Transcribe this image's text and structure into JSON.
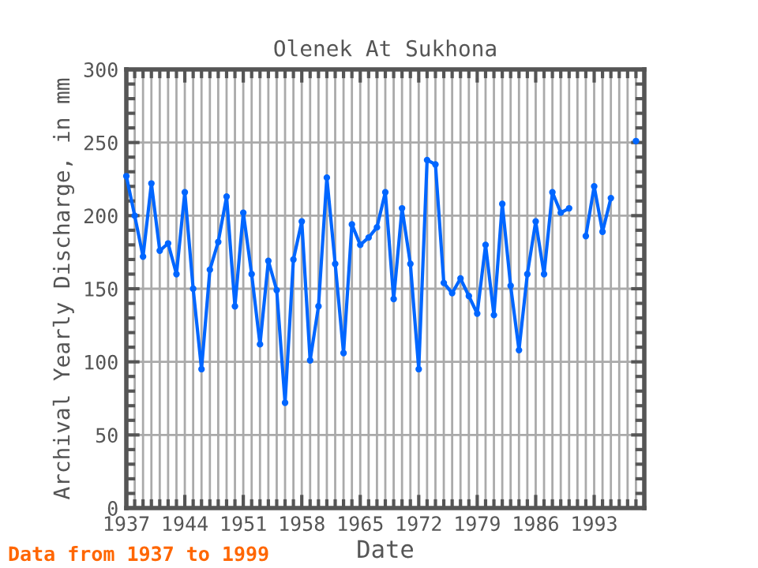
{
  "chart_data": {
    "type": "line",
    "title": "Olenek At Sukhona",
    "xlabel": "Date",
    "ylabel": "Archival Yearly Discharge, in mm",
    "x": [
      1937,
      1938,
      1939,
      1940,
      1941,
      1942,
      1943,
      1944,
      1945,
      1946,
      1947,
      1948,
      1949,
      1950,
      1951,
      1952,
      1953,
      1954,
      1955,
      1956,
      1957,
      1958,
      1959,
      1960,
      1961,
      1962,
      1963,
      1964,
      1965,
      1966,
      1967,
      1968,
      1969,
      1970,
      1971,
      1972,
      1973,
      1974,
      1975,
      1976,
      1977,
      1978,
      1979,
      1980,
      1981,
      1982,
      1983,
      1984,
      1985,
      1986,
      1987,
      1988,
      1989,
      1990,
      1991,
      1992,
      1993,
      1994,
      1995,
      1996,
      1997,
      1998
    ],
    "series": [
      {
        "color": "#0066ff",
        "values": [
          227,
          200,
          172,
          222,
          176,
          181,
          160,
          216,
          150,
          95,
          163,
          182,
          213,
          138,
          202,
          160,
          112,
          169,
          149,
          72,
          170,
          196,
          101,
          138,
          226,
          167,
          106,
          194,
          180,
          185,
          192,
          216,
          143,
          205,
          167,
          95,
          238,
          235,
          154,
          147,
          157,
          145,
          133,
          180,
          132,
          208,
          152,
          108,
          160,
          196,
          160,
          216,
          202,
          205,
          null,
          186,
          220,
          189,
          212,
          null,
          null,
          251
        ]
      }
    ],
    "xlim": [
      1937,
      1999
    ],
    "ylim": [
      0,
      300
    ],
    "xticks": [
      1937,
      1944,
      1951,
      1958,
      1965,
      1972,
      1979,
      1986,
      1993
    ],
    "yticks": [
      0,
      50,
      100,
      150,
      200,
      250,
      300
    ],
    "grid": true,
    "marker": "circle",
    "line_style": "solid",
    "annotations": [
      "Data from 1937 to 1999"
    ]
  }
}
